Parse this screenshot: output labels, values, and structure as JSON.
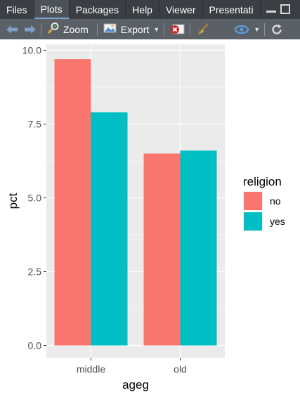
{
  "tabs": [
    {
      "label": "Files"
    },
    {
      "label": "Plots"
    },
    {
      "label": "Packages"
    },
    {
      "label": "Help"
    },
    {
      "label": "Viewer"
    },
    {
      "label": "Presentati"
    }
  ],
  "toolbar": {
    "zoom_label": "Zoom",
    "export_label": "Export"
  },
  "colors": {
    "panel": "#EBEBEB",
    "grid": "#ffffff",
    "series_no": "#F8766D",
    "series_yes": "#00BFC4"
  },
  "chart_data": {
    "type": "bar",
    "categories": [
      "middle",
      "old"
    ],
    "series": [
      {
        "name": "no",
        "values": [
          9.7,
          6.5
        ]
      },
      {
        "name": "yes",
        "values": [
          7.9,
          6.6
        ]
      }
    ],
    "xlabel": "ageg",
    "ylabel": "pct",
    "ylim": [
      0,
      10.5
    ],
    "yticks": [
      "0.0",
      "2.5",
      "5.0",
      "7.5",
      "10.0"
    ],
    "grid": true,
    "legend": {
      "title": "religion",
      "placement": "right",
      "entries": [
        "no",
        "yes"
      ]
    }
  }
}
